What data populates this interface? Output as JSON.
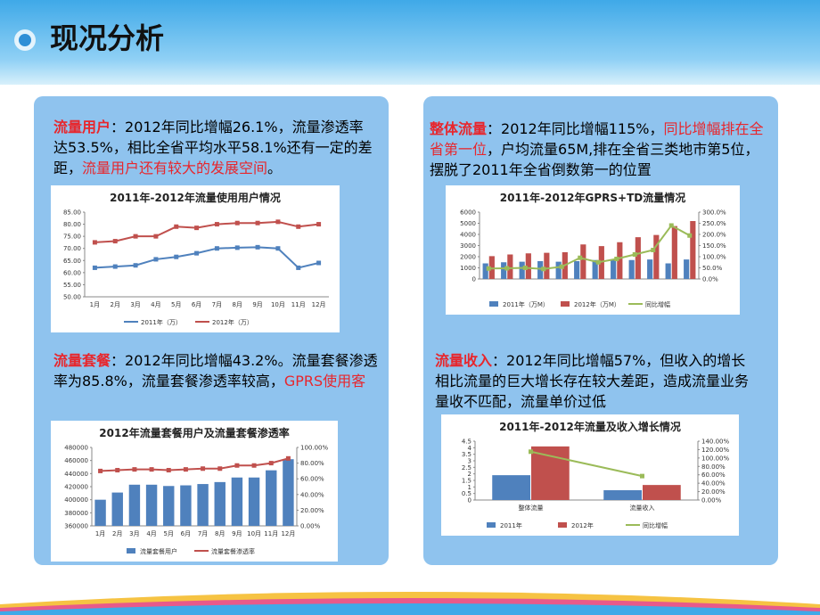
{
  "header": {
    "title": "现况分析"
  },
  "panels": [
    {
      "runs": [
        {
          "text": "流量用户",
          "color": "#e8262c",
          "bold": true
        },
        {
          "text": "：2012年同比增幅26.1%，流量渗透率达53.5%，相比全省平均水平58.1%还有一定的差距，",
          "color": "#000000"
        },
        {
          "text": "流量用户还有较大的发展空间",
          "color": "#e8262c"
        },
        {
          "text": "。",
          "color": "#000000"
        }
      ]
    },
    {
      "runs": [
        {
          "text": "整体流量",
          "color": "#e8262c",
          "bold": true
        },
        {
          "text": "：2012年同比增幅115%，",
          "color": "#000000"
        },
        {
          "text": "同比增幅排在全省第一位",
          "color": "#e8262c"
        },
        {
          "text": "，户均流量65M,排在全省三类地市第5位，摆脱了2011年全省倒数第一的位置",
          "color": "#000000"
        }
      ]
    },
    {
      "runs": [
        {
          "text": "流量套餐",
          "color": "#e8262c",
          "bold": true
        },
        {
          "text": "：2012年同比增幅43.2%。流量套餐渗透率为85.8%，流量套餐渗透率较高，",
          "color": "#000000"
        },
        {
          "text": "GPRS使用客",
          "color": "#e8262c"
        }
      ]
    },
    {
      "runs": [
        {
          "text": "流量收入",
          "color": "#e8262c",
          "bold": true
        },
        {
          "text": "：2012年同比增幅57%，但收入的增长相比流量的巨大增长存在较大差距，造成流量业务量收不匹配，流量单价过低",
          "color": "#000000"
        }
      ]
    }
  ],
  "chart_data": [
    {
      "type": "line",
      "title": "2011年-2012年流量使用用户情况",
      "categories": [
        "1月",
        "2月",
        "3月",
        "4月",
        "5月",
        "6月",
        "7月",
        "8月",
        "9月",
        "10月",
        "11月",
        "12月"
      ],
      "series": [
        {
          "name": "2011年（万）",
          "color": "#4f81bd",
          "values": [
            62,
            62.5,
            63,
            65.5,
            66.5,
            68,
            70,
            70.3,
            70.5,
            70,
            62,
            64
          ]
        },
        {
          "name": "2012年（万）",
          "color": "#c0504d",
          "values": [
            72.5,
            73,
            75,
            75,
            79,
            78.5,
            80,
            80.5,
            80.5,
            81,
            79,
            80
          ]
        }
      ],
      "ylim": [
        50,
        85
      ],
      "yticks": [
        {
          "value": 50,
          "label": "50.00"
        },
        {
          "value": 55,
          "label": "55.00"
        },
        {
          "value": 60,
          "label": "60.00"
        },
        {
          "value": 65,
          "label": "65.00"
        },
        {
          "value": 70,
          "label": "70.00"
        },
        {
          "value": 75,
          "label": "75.00"
        },
        {
          "value": 80,
          "label": "80.00"
        },
        {
          "value": 85,
          "label": "85.00"
        }
      ]
    },
    {
      "type": "bar",
      "title": "2011年-2012年GPRS+TD流量情况",
      "categories": [
        null,
        null,
        null,
        null,
        null,
        null,
        null,
        null,
        null,
        null,
        null,
        null
      ],
      "series": [
        {
          "name": "2011年（万M）",
          "color": "#4f81bd",
          "values": [
            1400,
            1500,
            1550,
            1600,
            1550,
            1600,
            1700,
            1750,
            1700,
            1750,
            1400,
            1750
          ]
        },
        {
          "name": "2012年（万M）",
          "color": "#c0504d",
          "values": [
            2050,
            2200,
            2300,
            2350,
            2400,
            3100,
            2950,
            3300,
            3750,
            3950,
            4750,
            5200
          ]
        },
        {
          "name": "同比增幅",
          "color": "#9bbb59",
          "type": "line",
          "axis": "y2",
          "values": [
            47,
            48,
            50,
            45,
            55,
            95,
            75,
            90,
            110,
            130,
            240,
            195
          ]
        }
      ],
      "ylim": [
        0,
        6000
      ],
      "yticks": [
        0,
        1000,
        2000,
        3000,
        4000,
        5000,
        6000
      ],
      "y2lim": [
        0,
        300
      ],
      "y2ticks": [
        {
          "value": 0,
          "label": "0.0%"
        },
        {
          "value": 50,
          "label": "50.0%"
        },
        {
          "value": 100,
          "label": "100.0%"
        },
        {
          "value": 150,
          "label": "150.0%"
        },
        {
          "value": 200,
          "label": "200.0%"
        },
        {
          "value": 250,
          "label": "250.0%"
        },
        {
          "value": 300,
          "label": "300.0%"
        }
      ]
    },
    {
      "type": "bar",
      "title": "2012年流量套餐用户及流量套餐渗透率",
      "categories": [
        "1月",
        "2月",
        "3月",
        "4月",
        "5月",
        "6月",
        "7月",
        "8月",
        "9月",
        "10月",
        "11月",
        "12月"
      ],
      "series": [
        {
          "name": "流量套餐用户",
          "color": "#4f81bd",
          "values": [
            400000,
            411000,
            423000,
            423000,
            421000,
            422000,
            424000,
            427000,
            434000,
            434000,
            445000,
            462000
          ]
        },
        {
          "name": "流量套餐渗透率",
          "color": "#c0504d",
          "type": "line",
          "axis": "y2",
          "values": [
            70,
            71,
            72,
            72,
            71,
            72,
            73,
            73,
            77,
            77,
            80,
            86
          ]
        }
      ],
      "ylim": [
        360000,
        480000
      ],
      "yticks": [
        360000,
        380000,
        400000,
        420000,
        440000,
        460000,
        480000
      ],
      "y2lim": [
        0,
        100
      ],
      "y2ticks": [
        {
          "value": 0,
          "label": "0.00%"
        },
        {
          "value": 20,
          "label": "20.00%"
        },
        {
          "value": 40,
          "label": "40.00%"
        },
        {
          "value": 60,
          "label": "60.00%"
        },
        {
          "value": 80,
          "label": "80.00%"
        },
        {
          "value": 100,
          "label": "100.00%"
        }
      ]
    },
    {
      "type": "bar",
      "title": "2011年-2012年流量及收入增长情况",
      "categories": [
        "整体流量",
        "流量收入"
      ],
      "series": [
        {
          "name": "2011年",
          "color": "#4f81bd",
          "values": [
            1.9,
            0.75
          ]
        },
        {
          "name": "2012年",
          "color": "#c0504d",
          "values": [
            4.1,
            1.15
          ]
        },
        {
          "name": "同比增幅",
          "color": "#9bbb59",
          "type": "line",
          "axis": "y2",
          "values": [
            115,
            57
          ]
        }
      ],
      "ylim": [
        0,
        4.5
      ],
      "yticks": [
        0,
        0.5,
        1,
        1.5,
        2,
        2.5,
        3,
        3.5,
        4,
        4.5
      ],
      "y2lim": [
        0,
        140
      ],
      "y2ticks": [
        {
          "value": 0,
          "label": "0.00%"
        },
        {
          "value": 20,
          "label": "20.00%"
        },
        {
          "value": 40,
          "label": "40.00%"
        },
        {
          "value": 60,
          "label": "60.00%"
        },
        {
          "value": 80,
          "label": "80.00%"
        },
        {
          "value": 100,
          "label": "100.00%"
        },
        {
          "value": 120,
          "label": "120.00%"
        },
        {
          "value": 140,
          "label": "140.00%"
        }
      ]
    }
  ]
}
